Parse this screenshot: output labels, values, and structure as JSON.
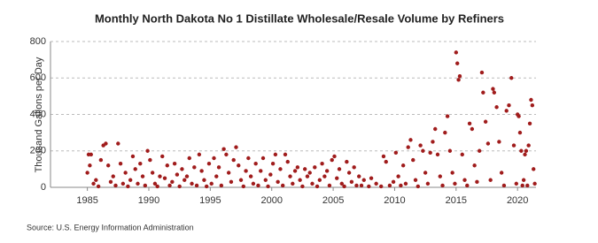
{
  "chart_data": {
    "type": "scatter",
    "title": "Monthly North Dakota No 1 Distillate Wholesale/Resale Volume by Refiners",
    "y_label": "Thousand Gallons per Day",
    "source": "Source: U.S. Energy Information Administration",
    "color": "#a01c1c",
    "grid": true,
    "xlim": [
      1982,
      2021.5
    ],
    "xticks": [
      1985,
      1990,
      1995,
      2000,
      2005,
      2010,
      2015,
      2020
    ],
    "ylim": [
      0,
      800
    ],
    "yticks": [
      0,
      200,
      400,
      600,
      800
    ],
    "x": [
      1985.0,
      1985.1,
      1985.2,
      1985.3,
      1985.5,
      1985.7,
      1985.9,
      1986.1,
      1986.3,
      1986.5,
      1986.7,
      1986.9,
      1987.1,
      1987.3,
      1987.5,
      1987.7,
      1987.9,
      1988.1,
      1988.3,
      1988.5,
      1988.7,
      1988.9,
      1989.1,
      1989.3,
      1989.5,
      1989.7,
      1989.9,
      1990.1,
      1990.3,
      1990.5,
      1990.7,
      1990.9,
      1991.1,
      1991.3,
      1991.5,
      1991.7,
      1991.9,
      1992.1,
      1992.3,
      1992.5,
      1992.7,
      1992.9,
      1993.1,
      1993.3,
      1993.5,
      1993.7,
      1993.9,
      1994.1,
      1994.3,
      1994.5,
      1994.7,
      1994.9,
      1995.1,
      1995.3,
      1995.5,
      1995.7,
      1995.9,
      1996.1,
      1996.3,
      1996.5,
      1996.7,
      1996.9,
      1997.1,
      1997.3,
      1997.5,
      1997.7,
      1997.9,
      1998.1,
      1998.3,
      1998.5,
      1998.7,
      1998.9,
      1999.1,
      1999.3,
      1999.5,
      1999.7,
      1999.9,
      2000.1,
      2000.3,
      2000.5,
      2000.7,
      2000.9,
      2001.1,
      2001.3,
      2001.5,
      2001.7,
      2001.9,
      2002.1,
      2002.3,
      2002.5,
      2002.7,
      2002.9,
      2003.1,
      2003.3,
      2003.5,
      2003.7,
      2003.9,
      2004.1,
      2004.3,
      2004.5,
      2004.7,
      2004.9,
      2005.1,
      2005.3,
      2005.5,
      2005.7,
      2005.9,
      2006.1,
      2006.3,
      2006.5,
      2006.7,
      2006.9,
      2007.1,
      2007.3,
      2007.5,
      2007.9,
      2008.1,
      2008.5,
      2008.9,
      2009.1,
      2009.3,
      2009.6,
      2009.9,
      2010.1,
      2010.3,
      2010.5,
      2010.7,
      2010.9,
      2011.1,
      2011.3,
      2011.5,
      2011.7,
      2011.9,
      2012.1,
      2012.3,
      2012.5,
      2012.7,
      2012.9,
      2013.1,
      2013.3,
      2013.5,
      2013.7,
      2013.9,
      2014.1,
      2014.3,
      2014.5,
      2014.7,
      2014.9,
      2015.0,
      2015.1,
      2015.2,
      2015.3,
      2015.5,
      2015.7,
      2015.9,
      2016.1,
      2016.3,
      2016.5,
      2016.7,
      2016.9,
      2017.1,
      2017.2,
      2017.4,
      2017.6,
      2017.8,
      2018.0,
      2018.1,
      2018.3,
      2018.5,
      2018.7,
      2018.9,
      2019.1,
      2019.3,
      2019.5,
      2019.7,
      2019.9,
      2020.0,
      2020.1,
      2020.2,
      2020.3,
      2020.4,
      2020.5,
      2020.6,
      2020.7,
      2020.8,
      2020.9,
      2021.0,
      2021.1,
      2021.2,
      2021.3,
      2021.4
    ],
    "values": [
      80,
      180,
      120,
      180,
      20,
      40,
      5,
      150,
      230,
      240,
      120,
      30,
      60,
      10,
      240,
      130,
      20,
      80,
      5,
      40,
      170,
      100,
      20,
      130,
      60,
      10,
      200,
      150,
      80,
      20,
      5,
      60,
      170,
      50,
      120,
      10,
      30,
      130,
      70,
      5,
      100,
      40,
      60,
      160,
      20,
      110,
      10,
      180,
      90,
      40,
      5,
      130,
      20,
      160,
      60,
      110,
      10,
      210,
      180,
      80,
      30,
      150,
      220,
      120,
      40,
      5,
      90,
      160,
      60,
      20,
      130,
      10,
      90,
      160,
      40,
      5,
      70,
      130,
      180,
      30,
      100,
      10,
      180,
      140,
      60,
      20,
      90,
      110,
      40,
      5,
      100,
      60,
      80,
      20,
      110,
      5,
      40,
      130,
      60,
      90,
      10,
      150,
      170,
      50,
      100,
      20,
      5,
      140,
      80,
      30,
      110,
      10,
      60,
      10,
      40,
      5,
      50,
      20,
      5,
      170,
      140,
      10,
      30,
      190,
      60,
      10,
      120,
      20,
      220,
      260,
      150,
      40,
      5,
      230,
      200,
      80,
      20,
      190,
      250,
      320,
      180,
      60,
      10,
      300,
      390,
      200,
      80,
      20,
      740,
      680,
      590,
      610,
      180,
      40,
      10,
      350,
      320,
      120,
      30,
      200,
      630,
      520,
      360,
      240,
      40,
      540,
      520,
      440,
      250,
      80,
      10,
      420,
      450,
      600,
      230,
      20,
      400,
      390,
      300,
      200,
      10,
      40,
      180,
      200,
      10,
      230,
      350,
      480,
      450,
      100,
      20
    ]
  }
}
